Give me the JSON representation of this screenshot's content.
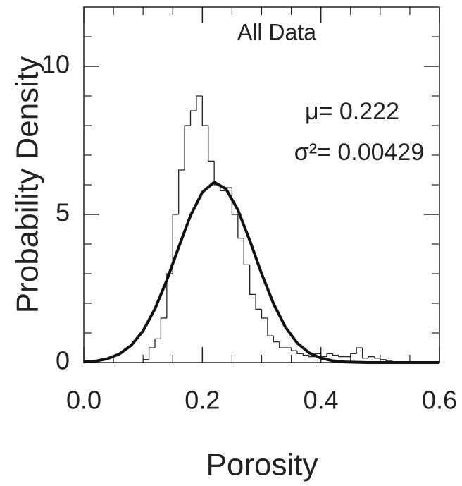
{
  "chart_data": {
    "type": "histogram",
    "title": "All Data",
    "annotations": [
      "μ= 0.222",
      "σ²= 0.00429"
    ],
    "x_label": "Porosity",
    "y_label": "Probability Density",
    "bins": [
      0.1,
      0.11,
      0.12,
      0.13,
      0.14,
      0.15,
      0.16,
      0.17,
      0.18,
      0.19,
      0.2,
      0.21,
      0.22,
      0.23,
      0.24,
      0.25,
      0.26,
      0.27,
      0.28,
      0.29,
      0.3,
      0.31,
      0.32,
      0.33,
      0.34,
      0.35,
      0.36,
      0.37,
      0.38,
      0.39,
      0.4,
      0.41,
      0.42,
      0.43,
      0.44,
      0.45,
      0.46,
      0.47,
      0.48,
      0.49,
      0.5,
      0.51,
      0.52
    ],
    "values": [
      0.1,
      0.5,
      0.8,
      1.5,
      3,
      5,
      6.5,
      8,
      8.5,
      9,
      8,
      6.8,
      6,
      5.8,
      5.9,
      5,
      4.2,
      3.3,
      2.3,
      1.8,
      1.5,
      0.9,
      0.7,
      0.5,
      0.5,
      0.4,
      0.3,
      0.25,
      0.2,
      0.3,
      0.2,
      0.3,
      0.25,
      0.2,
      0.2,
      0.3,
      0.5,
      0.15,
      0.2,
      0.15,
      0.1,
      0.05
    ],
    "color": "#222222",
    "fit": {
      "x": [
        0,
        0.02,
        0.04,
        0.06,
        0.08,
        0.1,
        0.12,
        0.14,
        0.16,
        0.18,
        0.2,
        0.22,
        0.24,
        0.26,
        0.28,
        0.3,
        0.32,
        0.34,
        0.36,
        0.38,
        0.4,
        0.42,
        0.44,
        0.46,
        0.48,
        0.5,
        0.52,
        0.54,
        0.56,
        0.58,
        0.6
      ],
      "values": [
        0.02,
        0.05,
        0.13,
        0.29,
        0.58,
        1.07,
        1.81,
        2.78,
        3.89,
        4.96,
        5.75,
        6.09,
        5.86,
        5.15,
        4.12,
        3.0,
        1.99,
        1.2,
        0.66,
        0.33,
        0.15,
        0.06,
        0.02,
        0.01,
        0,
        0,
        0,
        0,
        0,
        0,
        0
      ],
      "color": "#111111"
    },
    "xlim": [
      0,
      0.6
    ],
    "ylim": [
      0,
      12
    ],
    "xticks": [
      {
        "value": 0,
        "label": "0.0"
      },
      0.2,
      0.4,
      0.6
    ],
    "xminorticks": [
      0.05,
      0.1,
      0.15,
      0.25,
      0.3,
      0.35,
      0.45,
      0.5,
      0.55
    ],
    "yticks": [
      0,
      5,
      10
    ],
    "yminorticks": [
      1,
      2,
      3,
      4,
      6,
      7,
      8,
      9,
      11
    ]
  }
}
